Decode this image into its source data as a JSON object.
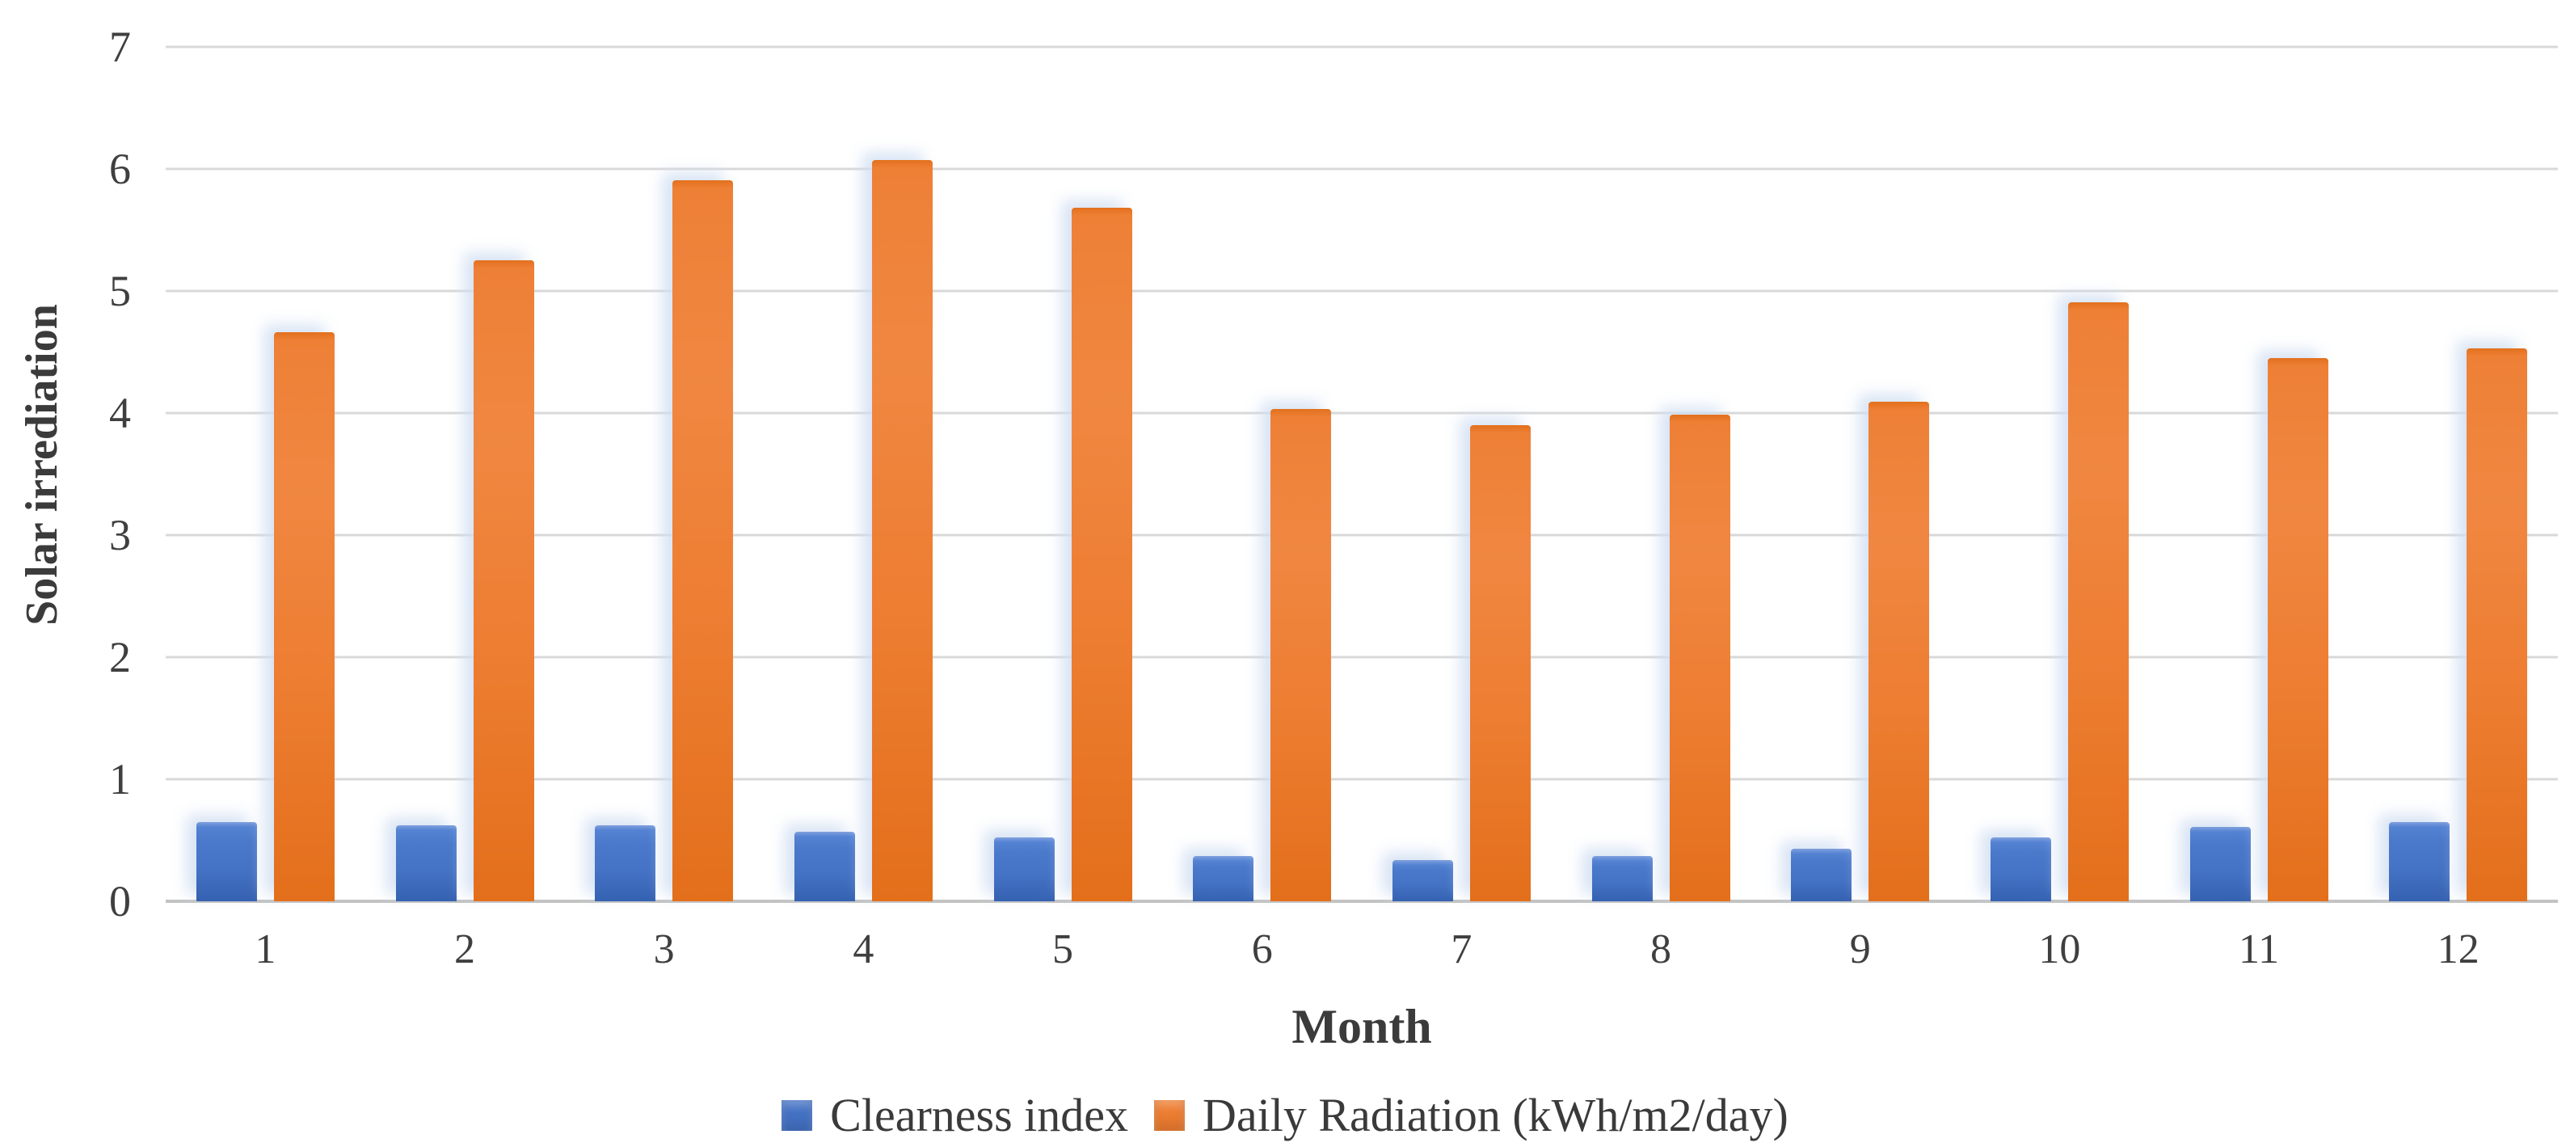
{
  "page": {
    "background": "#ffffff"
  },
  "chart_data": {
    "type": "bar",
    "title": "",
    "categories": [
      "1",
      "2",
      "3",
      "4",
      "5",
      "6",
      "7",
      "8",
      "9",
      "10",
      "11",
      "12"
    ],
    "series": [
      {
        "name": "Clearness index",
        "color": "#4472C4",
        "values": [
          0.65,
          0.62,
          0.62,
          0.57,
          0.52,
          0.37,
          0.34,
          0.37,
          0.43,
          0.52,
          0.61,
          0.65
        ]
      },
      {
        "name": "Daily Radiation (kWh/m2/day)",
        "color": "#ED7D31",
        "values": [
          4.66,
          5.25,
          5.91,
          6.07,
          5.68,
          4.03,
          3.9,
          3.99,
          4.09,
          4.91,
          4.45,
          4.53
        ]
      }
    ],
    "xlabel": "Month",
    "ylabel": "Solar irrediation",
    "ylim": [
      0,
      7
    ],
    "ytick_step": 1,
    "yticks": [
      0,
      1,
      2,
      3,
      4,
      5,
      6,
      7
    ],
    "grid": true,
    "legend_position": "bottom",
    "gridline_color": "#D9D9D9",
    "axis_text_color": "#3F3F3F"
  }
}
